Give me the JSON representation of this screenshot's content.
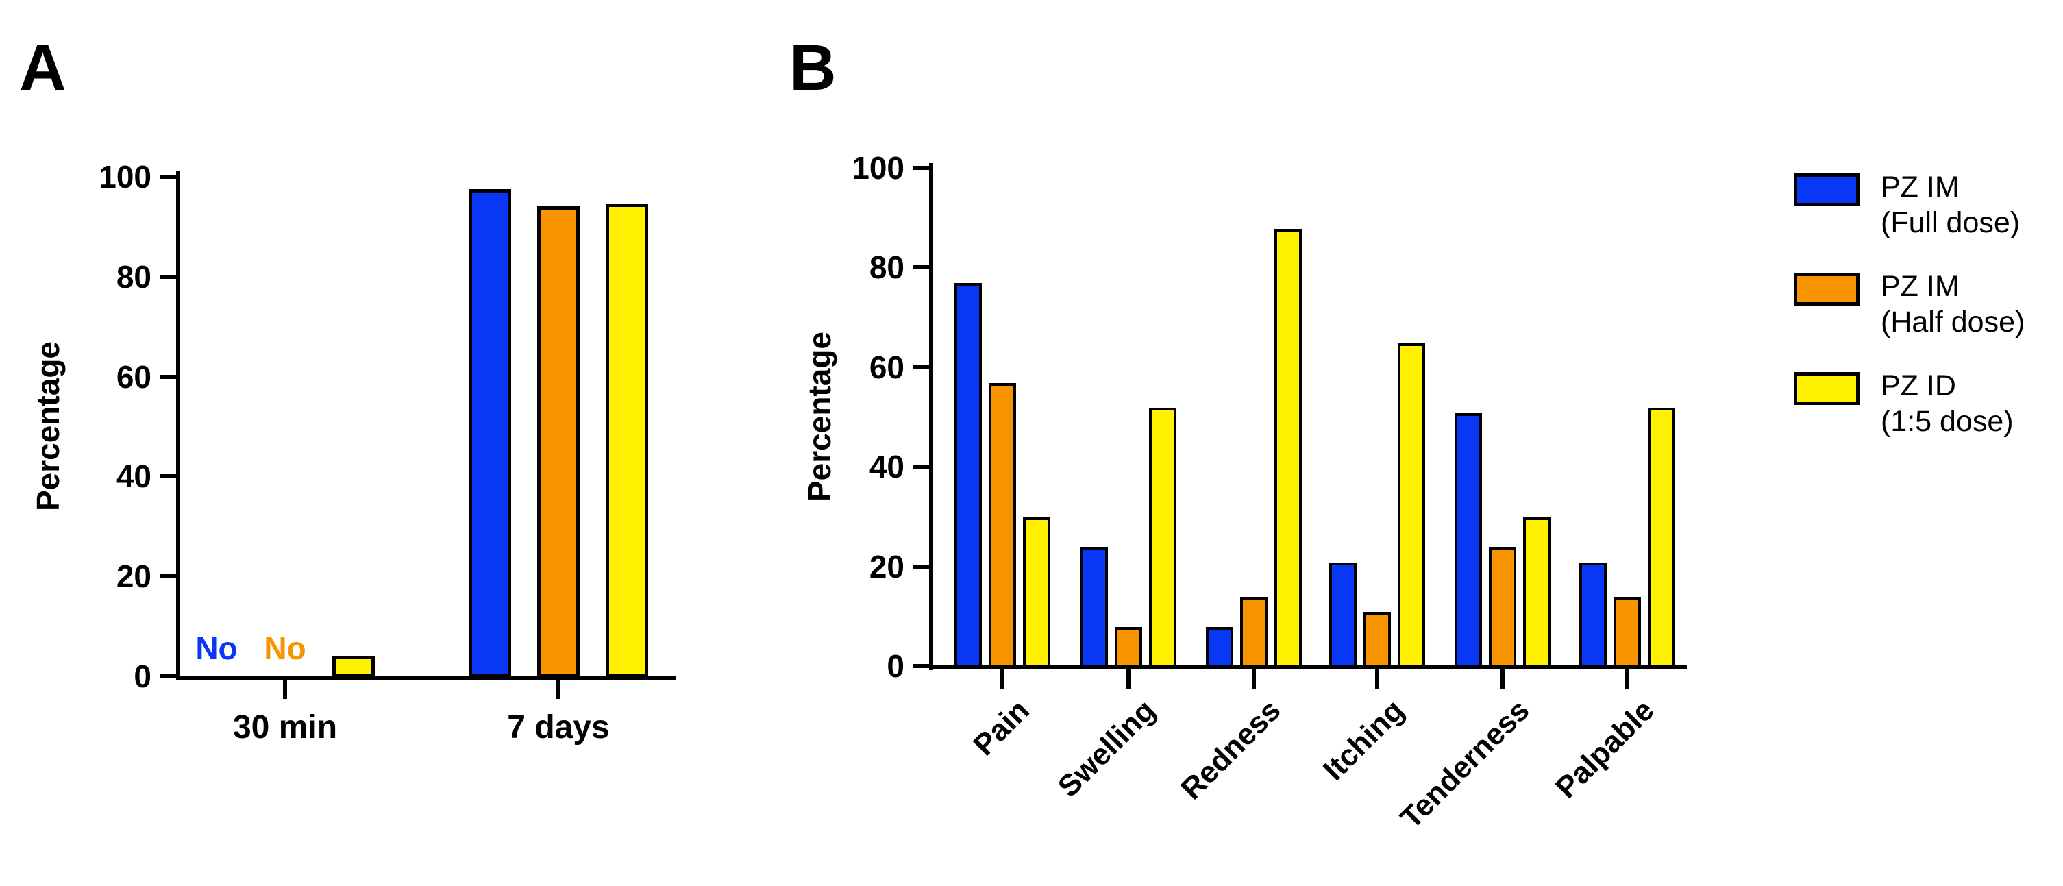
{
  "figure": {
    "panel_a_letter": "A",
    "panel_b_letter": "B"
  },
  "palette": {
    "blue": "#0837F5",
    "orange": "#F89400",
    "yellow": "#FFF100",
    "axis_black": "#000000"
  },
  "legend": [
    {
      "color": "blue",
      "line1": "PZ IM",
      "line2": "(Full dose)"
    },
    {
      "color": "orange",
      "line1": "PZ IM",
      "line2": "(Half dose)"
    },
    {
      "color": "yellow",
      "line1": "PZ ID",
      "line2": "(1:5 dose)"
    }
  ],
  "chart_data": [
    {
      "id": "A",
      "type": "bar",
      "title": "",
      "ylabel": "Percentage",
      "xlabel": "",
      "ylim": [
        0,
        100
      ],
      "yticks": [
        0,
        20,
        40,
        60,
        80,
        100
      ],
      "grid": false,
      "categories": [
        "30 min",
        "7 days"
      ],
      "series": [
        {
          "name": "PZ IM (Full dose)",
          "color": "blue",
          "values": [
            null,
            96.5
          ]
        },
        {
          "name": "PZ IM (Half dose)",
          "color": "orange",
          "values": [
            null,
            93
          ]
        },
        {
          "name": "PZ ID (1:5 dose)",
          "color": "yellow",
          "values": [
            3,
            93.5
          ]
        }
      ],
      "annotations": [
        {
          "text": "No",
          "color": "blue",
          "category_index": 0,
          "series_index": 0
        },
        {
          "text": "No",
          "color": "orange",
          "category_index": 0,
          "series_index": 1
        }
      ]
    },
    {
      "id": "B",
      "type": "bar",
      "title": "",
      "ylabel": "Percentage",
      "xlabel": "",
      "ylim": [
        0,
        100
      ],
      "yticks": [
        0,
        20,
        40,
        60,
        80,
        100
      ],
      "grid": false,
      "categories": [
        "Pain",
        "Swelling",
        "Redness",
        "Itching",
        "Tenderness",
        "Palpable"
      ],
      "series": [
        {
          "name": "PZ IM (Full dose)",
          "color": "blue",
          "values": [
            76,
            23,
            7,
            20,
            50,
            20
          ]
        },
        {
          "name": "PZ IM (Half dose)",
          "color": "orange",
          "values": [
            56,
            7,
            13,
            10,
            23,
            13
          ]
        },
        {
          "name": "PZ ID (1:5 dose)",
          "color": "yellow",
          "values": [
            29,
            51,
            87,
            64,
            29,
            51
          ]
        }
      ],
      "annotations": []
    }
  ]
}
